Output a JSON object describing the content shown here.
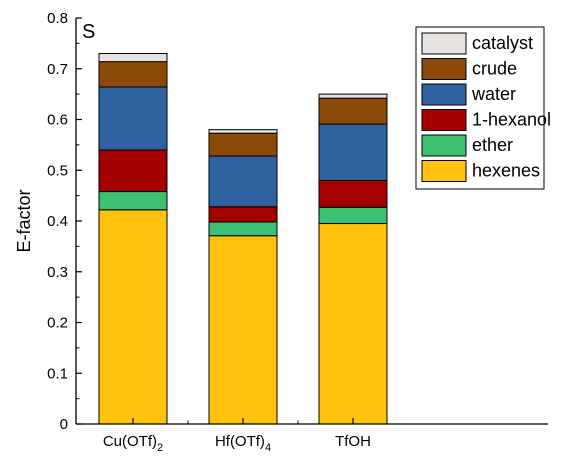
{
  "chart_data": {
    "type": "bar",
    "stacked": true,
    "panel_label": "S",
    "xlabel": "",
    "ylabel": "E-factor",
    "ylim": [
      0,
      0.8
    ],
    "yticks": [
      "0",
      "0.1",
      "0.2",
      "0.3",
      "0.4",
      "0.5",
      "0.6",
      "0.7",
      "0.8"
    ],
    "grid": false,
    "legend_position": "top-right",
    "categories": [
      {
        "base": "Cu(OTf)",
        "sub": "2"
      },
      {
        "base": "Hf(OTf)",
        "sub": "4"
      },
      {
        "base": "TfOH",
        "sub": ""
      }
    ],
    "series": [
      {
        "name": "hexenes",
        "color": "#ffc20e",
        "values": [
          0.422,
          0.371,
          0.395
        ]
      },
      {
        "name": "ether",
        "color": "#3cc071",
        "values": [
          0.036,
          0.027,
          0.032
        ]
      },
      {
        "name": "1-hexanol",
        "color": "#a50000",
        "values": [
          0.082,
          0.03,
          0.053
        ]
      },
      {
        "name": "water",
        "color": "#2f62a0",
        "values": [
          0.124,
          0.1,
          0.111
        ]
      },
      {
        "name": "crude",
        "color": "#8b4a07",
        "values": [
          0.05,
          0.045,
          0.051
        ]
      },
      {
        "name": "catalyst",
        "color": "#e6e3e1",
        "values": [
          0.016,
          0.007,
          0.008
        ]
      }
    ]
  }
}
